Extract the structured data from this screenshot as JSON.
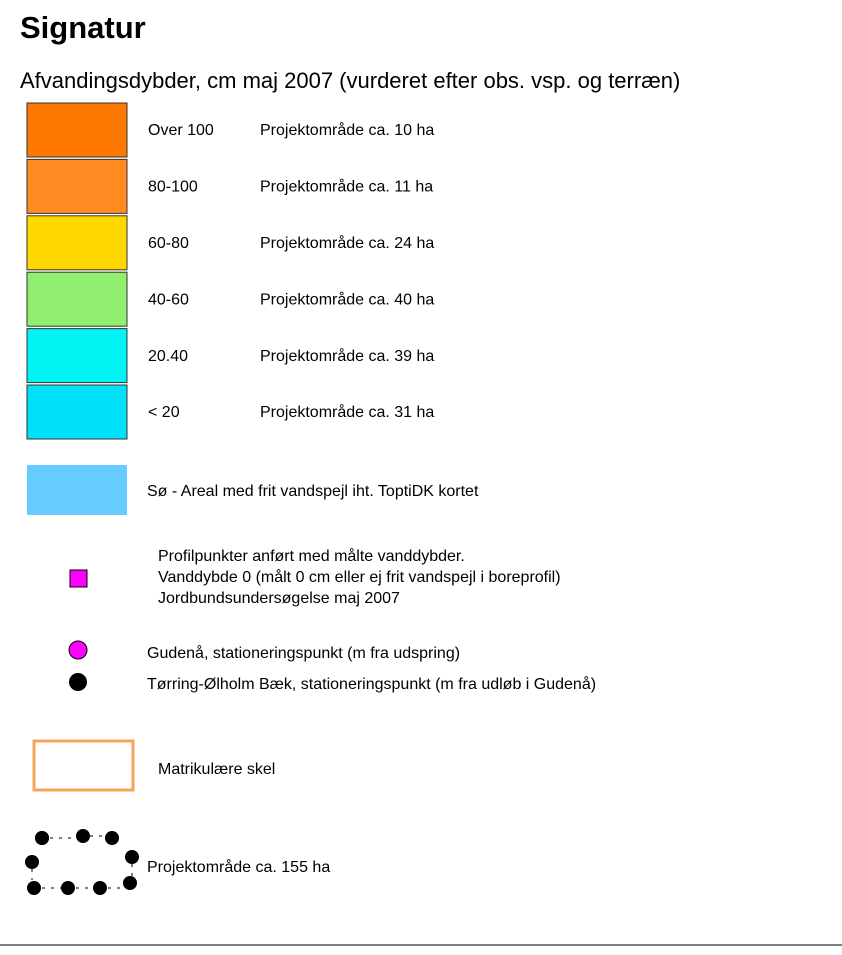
{
  "title": "Signatur",
  "subtitle": "Afvandingsdybder, cm maj 2007 (vurderet efter obs. vsp. og terræn)",
  "classes": [
    {
      "range": "Over 100",
      "label": "Projektområde ca. 10 ha",
      "color": "#ff7800"
    },
    {
      "range": "80-100",
      "label": "Projektområde ca. 11 ha",
      "color": "#ff8a22"
    },
    {
      "range": "60-80",
      "label": "Projektområde ca. 24 ha",
      "color": "#ffd800"
    },
    {
      "range": "40-60",
      "label": "Projektområde ca. 40 ha",
      "color": "#92ee6e"
    },
    {
      "range": "20.40",
      "label": "Projektområde ca. 39 ha",
      "color": "#00f4f4"
    },
    {
      "range": "< 20",
      "label": "Projektområde ca. 31 ha",
      "color": "#00e0f8"
    }
  ],
  "lake": {
    "label": "Sø - Areal med frit vandspejl iht. ToptiDK kortet",
    "color": "#66ccff"
  },
  "profile": {
    "lines": [
      "Profilpunkter anført med målte vanddybder.",
      "Vanddybde 0 (målt 0 cm eller ej frit vandspejl i boreprofil)",
      "Jordbundsundersøgelse maj 2007"
    ],
    "color": "#ff00ff"
  },
  "gudenaa": {
    "label": "Gudenå, stationeringspunkt (m fra udspring)",
    "color": "#ff00ff"
  },
  "baek": {
    "label": "Tørring-Ølholm Bæk, stationeringspunkt (m fra udløb i Gudenå)",
    "color": "#000000"
  },
  "skel": {
    "label": "Matrikulære skel",
    "color": "#f5a55a"
  },
  "project": {
    "label": "Projektområde ca. 155 ha"
  }
}
